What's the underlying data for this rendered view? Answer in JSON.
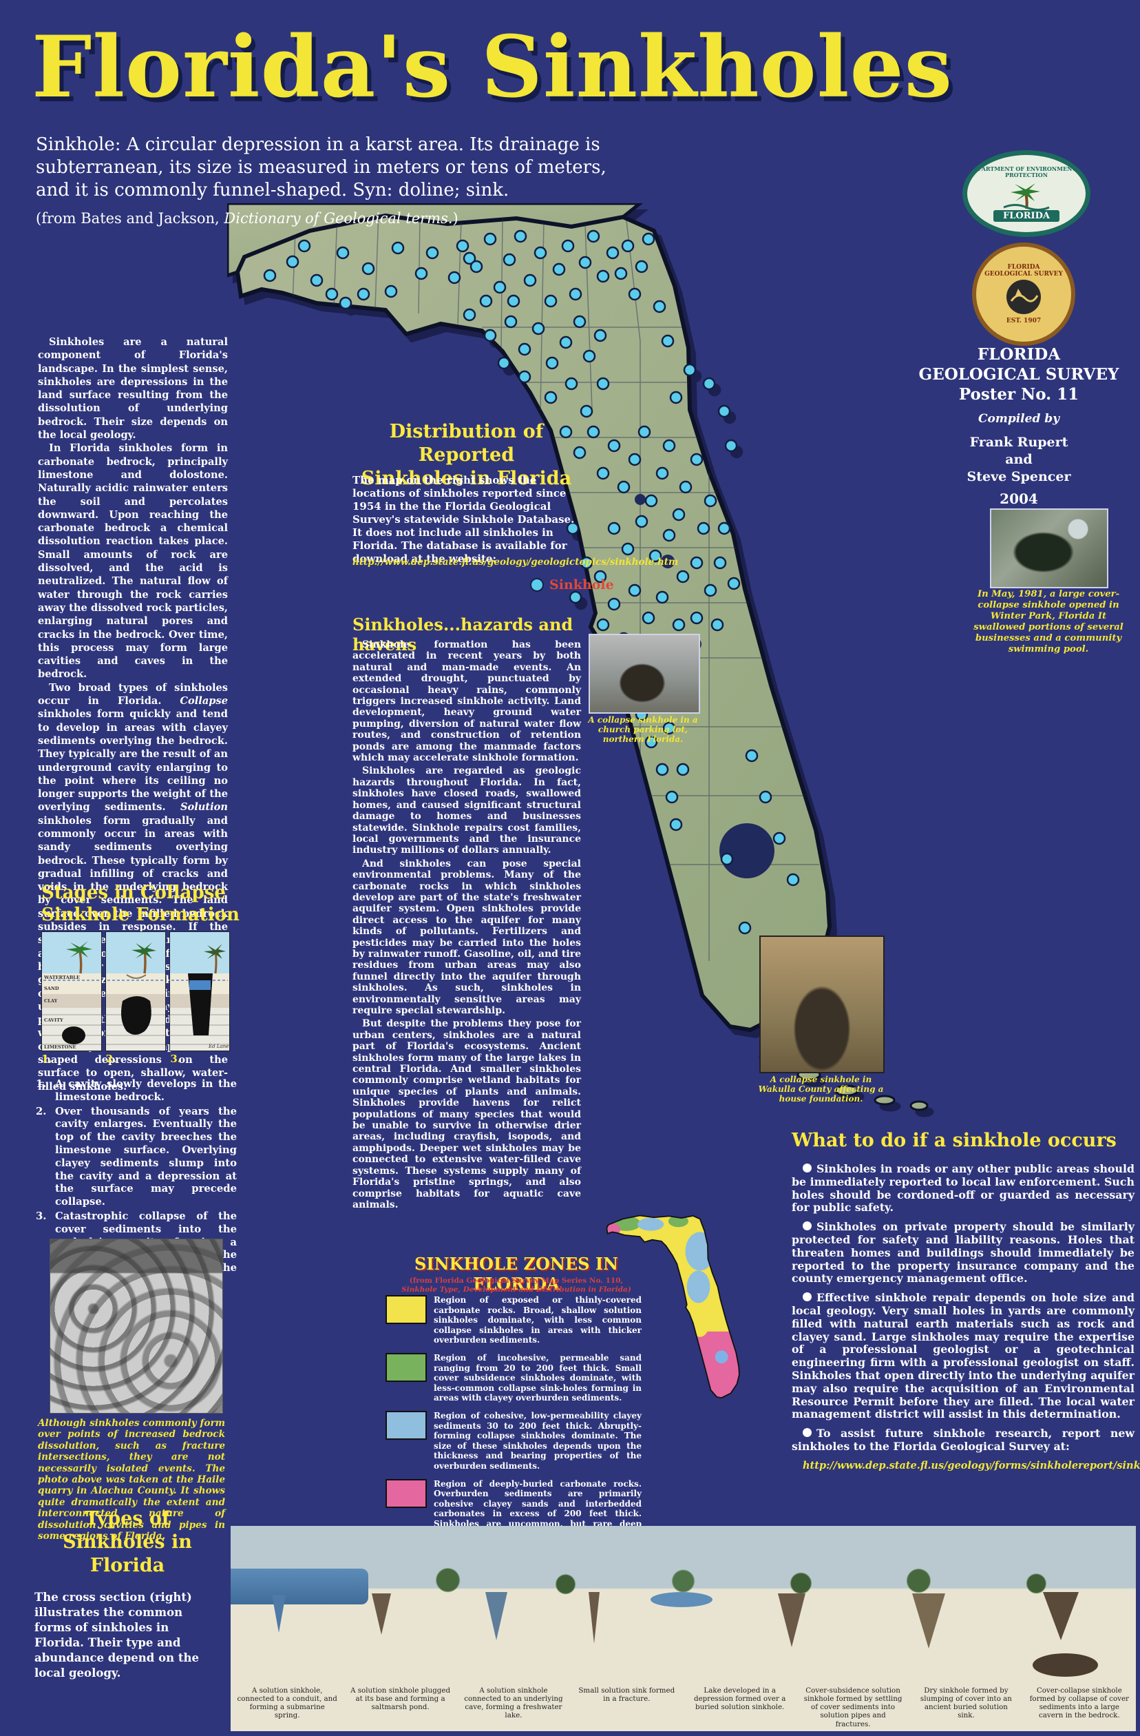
{
  "title": "Florida's Sinkholes",
  "definition": {
    "term": "Sinkhole:",
    "text": " A circular depression in a karst area.  Its drainage is subterranean, its size is measured in meters or tens of meters, and it is commonly funnel-shaped.  Syn: doline; sink.",
    "source_pre": "(from Bates and Jackson, ",
    "source_italic": "Dictionary of Geological terms.",
    "source_post": ")"
  },
  "logos": {
    "dep_ring_text": "DEPARTMENT OF ENVIRONMENTAL PROTECTION",
    "dep_label": "FLORIDA",
    "fgs_ring_text": "FLORIDA GEOLOGICAL SURVEY",
    "fgs_est": "EST. 1907"
  },
  "survey": {
    "org": "FLORIDA GEOLOGICAL SURVEY",
    "poster_no": "Poster No. 11",
    "compiled_by": "Compiled by",
    "author1": "Frank Rupert",
    "author_and": "and",
    "author2": "Steve Spencer",
    "year": "2004"
  },
  "intro": {
    "p1": "Sinkholes are a natural component of Florida's landscape.  In the simplest sense, sinkholes are depressions in the land surface resulting from the dissolution  of underlying bedrock.  Their size  depends on the local geology.",
    "p2": "In Florida sinkholes form in carbonate bedrock, principally limestone and dolostone. Naturally acidic rainwater enters the soil and percolates downward.  Upon reaching the carbonate bedrock a chemical dissolution reaction takes place.  Small amounts of rock are dissolved, and the acid is neutralized.  The natural flow of water through the rock carries away the dissolved rock particles, enlarging natural pores and cracks in the bedrock. Over time, this process may form large cavities and caves in the bedrock.",
    "p3_pre": "Two broad types of sinkholes occur in Florida.  ",
    "p3_it1": "Collapse",
    "p3_mid": " sinkholes form quickly and tend to develop in areas with clayey sediments overlying the bedrock.  They typically are the result of an underground cavity enlarging to the point where its ceiling no longer supports the weight of the overlying sediments. ",
    "p3_it2": "Solution",
    "p3_post": " sinkholes form gradually and commonly occur in areas with sandy sediments overlying bedrock.  These typically form by gradual infilling of cracks and voids in the underlying bedrock by cover sediments. The land surface over the infilled bedrock subsides in response.  If the slumped sediments are flushed away by groundwater flow in the bedrock, or if the voids gradually grow in size, the sink enlarges over time. Sometimes the underlying voids may become plugged with clays, and a shallow wetland forms.  Solution sinks can vary from simple bowl-shaped depressions on the surface to open, shallow, water-filled sinkholes."
  },
  "distribution": {
    "heading1": "Distribution of Reported",
    "heading2": "Sinkholes in Florida",
    "body": "The map on the right shows the locations of sinkholes reported since 1954 in the the Florida Geological Survey's statewide Sinkhole Database. It does not include all sinkholes in Florida.  The database is available for download at the website:",
    "url": "http://www.dep.state.fl.us/geology/geologictopics/sinkhole.htm",
    "legend_label": "Sinkhole"
  },
  "hazards": {
    "heading": "Sinkholes...hazards and havens",
    "p1": "Sinkhole formation has been accelerated in recent years by both natural and man-made events.  An extended drought, punctuated by occasional heavy rains, commonly triggers increased sinkhole activity. Land development, heavy ground water pumping, diversion of natural water flow routes, and construction of retention ponds are among the manmade factors which may accelerate sinkhole formation.",
    "p2": "Sinkholes are regarded as geologic hazards throughout Florida. In fact, sinkholes have closed roads, swallowed homes, and caused significant structural damage to homes and businesses statewide. Sinkhole repairs cost families, local governments and the insurance industry millions of dollars annually.",
    "p3": "And sinkholes can pose special environmental problems. Many of the carbonate rocks in which sinkholes develop are part of the state's freshwater aquifer system.  Open sinkholes provide direct access to the aquifer for many kinds of pollutants. Fertilizers and pesticides may be carried into the holes by rainwater runoff. Gasoline, oil, and tire residues from urban areas may also funnel directly into the aquifer through sinkholes. As such, sinkholes in environmentally sensitive areas may require special stewardship.",
    "p4": "But despite the problems they pose for urban centers, sinkholes are a natural part of Florida's ecosystems. Ancient sinkholes form many of the large lakes in central Florida.  And smaller sinkholes commonly comprise wetland habitats for unique species of plants and animals.  Sinkholes provide havens for relict populations of many species that would be unable to survive in otherwise drier areas, including crayfish, isopods, and amphipods.  Deeper wet sinkholes may be connected to extensive water-filled cave systems.  These systems supply many of Florida's pristine springs, and also comprise habitats for aquatic cave animals.",
    "church_caption": "A collapse sinkhole in a church parking lot, northern Florida.",
    "wakulla_caption": "A collapse sinkhole in Wakulla County affecting a house foundation."
  },
  "winter_park_caption": "In May, 1981, a large cover-collapse sinkhole opened in Winter Park, Florida It swallowed portions of several businesses and a community swimming pool.",
  "stages": {
    "heading1": "Stages in Collapse",
    "heading2": "Sinkhole Formation",
    "label_watertable": "WATERTABLE",
    "label_sand": "SAND",
    "label_clay": "CLAY",
    "label_cavity": "CAVITY",
    "label_limestone": "LIMESTONE",
    "credit": "Ed Lane",
    "n1": "1.",
    "n2": "2.",
    "n3": "3.",
    "item1": "A cavity slowly develops in the limestone bedrock.",
    "item2": "Over thousands of years the cavity enlarges. Eventually the top of the cavity breeches the limestone surface.  Overlying clayey sediments slump into the cavity and a depression at the surface may precede collapse.",
    "item3": "Catastrophic collapse of the cover sediments into the underlying cavity, forming a hole at the land surface.  If the local water table is high the hole may fill with water."
  },
  "quarry_caption": "Although sinkholes commonly form over points of increased bedrock dissolution, such as fracture intersections, they are not necessarily isolated events. The photo above was taken at the Haile quarry in Alachua County.  It shows quite dramatically the extent and interconnected nature of dissolution cavities and pipes in some regions of Florida.",
  "zones": {
    "heading": "SINKHOLE ZONES IN FLORIDA",
    "sub1": "(from Florida Geological Survey Map Series No. 110,",
    "sub2": "Sinkhole Type, Development and Distribution in Florida)",
    "legend": [
      {
        "color": "#f2e24b",
        "text": "Region of exposed or thinly-covered carbonate rocks. Broad, shallow solution sinkholes dominate, with less common collapse sinkholes in  areas with thicker overburden sediments."
      },
      {
        "color": "#78b25c",
        "text": "Region of incohesive, permeable sand ranging from 20 to 200 feet thick.  Small cover subsidence sinkholes dominate, with less-common collapse sink-holes forming in areas with clayey overburden sediments."
      },
      {
        "color": "#8fbede",
        "text": "Region of cohesive, low-permeability clayey sediments 30 to 200 feet thick.  Abruptly-forming collapse sinkholes dominate.  The size of these sinkholes depends upon the thickness and bearing properties of the overburden sediments."
      },
      {
        "color": "#e4679f",
        "text": "Region of deeply-buried carbonate rocks.  Overburden sediments are primarily cohesive clayey sands and interbedded carbonates in excess of 200 feet thick.  Sinkholes are uncommon, but rare deep collapse types and small subsidence sinkholes formed in shallow shell beds or carbonate lenses are possible."
      }
    ]
  },
  "what_to_do": {
    "heading": "What to do if a sinkhole occurs",
    "b1": "Sinkholes in roads or any other public areas should be immediately reported to local law enforcement.  Such holes should be cordoned-off or guarded as necessary for public safety.",
    "b2": "Sinkholes on private property should be similarly protected for safety and liability reasons. Holes that threaten homes and buildings should immediately be reported to the property insurance company and the county emergency management office.",
    "b3": "Effective sinkhole repair depends on hole size and local geology.  Very small holes in yards are commonly filled with natural earth materials such as rock and clayey sand.  Large sinkholes may require the expertise of a professional geologist or a geotechnical engineering firm with a professional geologist on staff.  Sinkholes that open directly into the underlying aquifer may also require the acquisition of an Environmental Resource Permit before they are filled.  The local water management district will assist in this determination.",
    "b4": "To assist future sinkhole research, report new sinkholes to the Florida Geological Survey at:",
    "url": "http://www.dep.state.fl.us/geology/forms/sinkholereport/sinkreportform.htm"
  },
  "types": {
    "heading1": "Types of",
    "heading2": "Sinkholes in",
    "heading3": "Florida",
    "body": "The cross section (right) illustrates the common forms of sinkholes in Florida.  Their type and abundance depend on the local geology.",
    "captions": [
      "A solution sinkhole, connected to a conduit, and forming a submarine spring.",
      "A solution sinkhole plugged at its base and forming a saltmarsh pond.",
      "A solution sinkhole connected to an underlying cave, forming a freshwater lake.",
      "Small solution sink formed in a fracture.",
      "Lake developed in a depression formed over a buried solution sinkhole.",
      "Cover-subsidence solution sinkhole formed by settling of cover sediments into solution pipes and fractures.",
      "Dry sinkhole formed by slumping of cover into an ancient buried solution sink.",
      "Cover-collapse sinkhole formed by collapse of cover sediments into a large cavern in the bedrock."
    ]
  },
  "sinkhole_map": {
    "dot_color": "#5bcdea",
    "dots": [
      [
        95,
        85
      ],
      [
        130,
        112
      ],
      [
        168,
        72
      ],
      [
        205,
        95
      ],
      [
        248,
        65
      ],
      [
        282,
        102
      ],
      [
        152,
        132
      ],
      [
        112,
        62
      ],
      [
        62,
        105
      ],
      [
        238,
        128
      ],
      [
        298,
        72
      ],
      [
        330,
        108
      ],
      [
        198,
        132
      ],
      [
        172,
        145
      ],
      [
        352,
        80
      ],
      [
        342,
        62
      ],
      [
        362,
        92
      ],
      [
        382,
        52
      ],
      [
        396,
        122
      ],
      [
        410,
        82
      ],
      [
        426,
        48
      ],
      [
        440,
        112
      ],
      [
        455,
        72
      ],
      [
        470,
        142
      ],
      [
        482,
        96
      ],
      [
        495,
        62
      ],
      [
        506,
        132
      ],
      [
        520,
        86
      ],
      [
        532,
        48
      ],
      [
        546,
        106
      ],
      [
        560,
        72
      ],
      [
        352,
        162
      ],
      [
        382,
        192
      ],
      [
        412,
        172
      ],
      [
        432,
        212
      ],
      [
        452,
        182
      ],
      [
        472,
        232
      ],
      [
        492,
        202
      ],
      [
        512,
        172
      ],
      [
        526,
        222
      ],
      [
        542,
        192
      ],
      [
        470,
        282
      ],
      [
        500,
        262
      ],
      [
        522,
        302
      ],
      [
        546,
        262
      ],
      [
        432,
        252
      ],
      [
        402,
        232
      ],
      [
        376,
        142
      ],
      [
        416,
        142
      ],
      [
        582,
        62
      ],
      [
        602,
        92
      ],
      [
        592,
        132
      ],
      [
        612,
        52
      ],
      [
        572,
        102
      ],
      [
        628,
        150
      ],
      [
        640,
        200
      ],
      [
        652,
        282
      ],
      [
        672,
        242
      ],
      [
        700,
        262
      ],
      [
        722,
        302
      ],
      [
        732,
        352
      ],
      [
        492,
        332
      ],
      [
        512,
        362
      ],
      [
        532,
        332
      ],
      [
        546,
        392
      ],
      [
        562,
        352
      ],
      [
        576,
        412
      ],
      [
        592,
        372
      ],
      [
        606,
        332
      ],
      [
        616,
        432
      ],
      [
        632,
        392
      ],
      [
        642,
        352
      ],
      [
        656,
        452
      ],
      [
        666,
        412
      ],
      [
        682,
        372
      ],
      [
        692,
        472
      ],
      [
        702,
        432
      ],
      [
        562,
        472
      ],
      [
        582,
        502
      ],
      [
        602,
        462
      ],
      [
        622,
        512
      ],
      [
        642,
        482
      ],
      [
        662,
        542
      ],
      [
        682,
        522
      ],
      [
        702,
        562
      ],
      [
        542,
        542
      ],
      [
        562,
        582
      ],
      [
        592,
        562
      ],
      [
        612,
        602
      ],
      [
        632,
        572
      ],
      [
        656,
        612
      ],
      [
        502,
        472
      ],
      [
        522,
        522
      ],
      [
        506,
        572
      ],
      [
        546,
        612
      ],
      [
        576,
        632
      ],
      [
        682,
        602
      ],
      [
        716,
        522
      ],
      [
        722,
        472
      ],
      [
        736,
        552
      ],
      [
        712,
        612
      ],
      [
        586,
        702
      ],
      [
        602,
        742
      ],
      [
        616,
        782
      ],
      [
        632,
        822
      ],
      [
        646,
        862
      ],
      [
        612,
        702
      ],
      [
        642,
        762
      ],
      [
        662,
        822
      ],
      [
        582,
        732
      ],
      [
        652,
        902
      ],
      [
        762,
        802
      ],
      [
        782,
        862
      ],
      [
        802,
        922
      ],
      [
        822,
        982
      ],
      [
        752,
        1052
      ],
      [
        792,
        1102
      ],
      [
        726,
        952
      ]
    ]
  }
}
